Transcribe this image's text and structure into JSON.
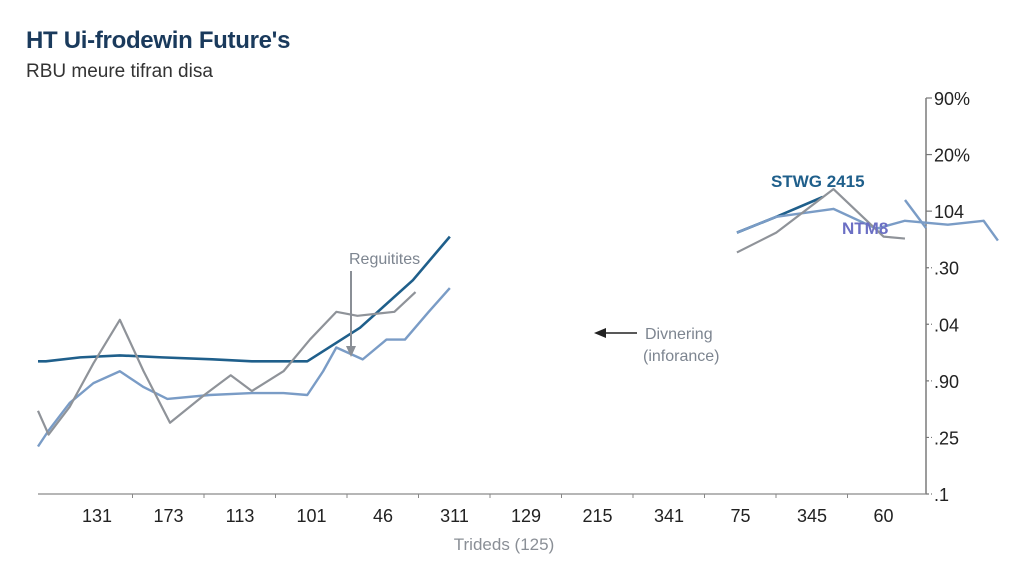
{
  "chart_data": {
    "type": "line",
    "title": "HT Ui-frodewin Future's",
    "subtitle": "RBU meure tifran disa",
    "xlabel": "Trideds (125)",
    "ylabel": "",
    "x_tick_labels": [
      "131",
      "173",
      "113",
      "101",
      "46",
      "311",
      "129",
      "215",
      "341",
      "75",
      "345",
      "60"
    ],
    "y_axis": {
      "side": "right",
      "tick_labels_top_to_bottom": [
        "90%",
        "20%",
        "104",
        ".30",
        ".04",
        ".90",
        ".25",
        ".1"
      ],
      "note": "y values below are on a normalized 0-100 scale: 0 = bottom tick (.1), 100 = top tick (90%)",
      "range": [
        0,
        100
      ]
    },
    "x_range": [
      0,
      13
    ],
    "grid": false,
    "series": [
      {
        "name": "STWG 2415",
        "color": "#1f5f8b",
        "x": [
          0,
          0.3,
          1.6,
          3.1,
          4.7,
          6.6,
          8.1,
          10.2,
          12.2,
          14.2,
          15.6
        ],
        "y": [
          33.5,
          33.5,
          34.5,
          35,
          34.5,
          34,
          33.5,
          33.5,
          42,
          54,
          65
        ],
        "note": "x in tick-index units where tick 0 = first label position; series extends to mid-chart"
      },
      {
        "name": "NTM8",
        "color": "#7a9cc6",
        "x": [
          0,
          0.4,
          1.2,
          2.1,
          3.1,
          4.0,
          4.9,
          6.5,
          8.1,
          9.3,
          10.2,
          10.8,
          11.3,
          12.3,
          13.2,
          13.9,
          14.8,
          15.6
        ],
        "y": [
          12,
          16,
          23,
          28,
          31,
          27,
          24,
          25,
          25.5,
          25.5,
          25,
          31,
          37,
          34,
          39,
          39,
          46,
          52
        ]
      },
      {
        "name": "Gray series",
        "color": "#8f9399",
        "x": [
          0,
          0.4,
          1.2,
          2.1,
          3.1,
          4.0,
          5.0,
          6.3,
          7.3,
          8.1,
          9.3,
          10.3,
          11.3,
          12.1,
          13.5,
          14.3
        ],
        "y": [
          21,
          15,
          22,
          33,
          44,
          31,
          18,
          25,
          30,
          26,
          31,
          39,
          46,
          45,
          46,
          51
        ]
      }
    ],
    "series_right": [
      {
        "name": "STWG 2415",
        "points": [
          [
            8.95,
            66
          ],
          [
            9.5,
            70
          ],
          [
            10.15,
            75
          ]
        ]
      },
      {
        "name": "NTM8",
        "points": [
          [
            8.95,
            66
          ],
          [
            9.5,
            70
          ],
          [
            10.3,
            72
          ],
          [
            10.9,
            67
          ],
          [
            11.3,
            69
          ],
          [
            11.9,
            68
          ],
          [
            12.4,
            69
          ],
          [
            12.6,
            64
          ]
        ]
      },
      {
        "name": "Gray series",
        "points": [
          [
            8.95,
            61
          ],
          [
            9.5,
            66
          ],
          [
            10.3,
            77
          ],
          [
            11.0,
            65
          ],
          [
            11.3,
            64.5
          ]
        ]
      }
    ],
    "legend": [
      {
        "label": "STWG 2415",
        "color": "#1f5f8b",
        "placement": "top-right"
      },
      {
        "label": "NTM8",
        "color": "#6b6fc4",
        "placement": "top-right"
      }
    ],
    "annotations": [
      {
        "text": "Reguitites",
        "arrow": "down",
        "target_x_tick": 4,
        "target_series": "STWG 2415"
      },
      {
        "text_lines": [
          "Divnering",
          "(inforance)"
        ],
        "arrow": "left",
        "target_series": "NTM8",
        "target_x_tick": 7.3
      }
    ]
  }
}
